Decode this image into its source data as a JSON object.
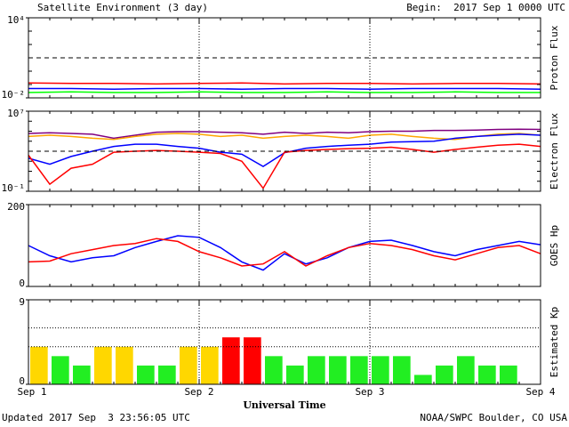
{
  "header": {
    "title": "Satellite Environment (3 day)",
    "begin": "Begin:  2017 Sep 1 0000 UTC"
  },
  "footer": {
    "updated": "Updated 2017 Sep  3 23:56:05 UTC",
    "credit": "NOAA/SWPC Boulder, CO USA"
  },
  "chart_data": [
    {
      "type": "line",
      "ylabel": "Proton Flux",
      "log_scale": true,
      "ylim": [
        0.01,
        10000
      ],
      "yticks": [
        {
          "value": 0.01,
          "label": "10⁻²"
        },
        {
          "value": 10000,
          "label": "10⁴"
        }
      ],
      "xlim": [
        0,
        72
      ],
      "xticks": [
        0,
        24,
        48,
        72
      ],
      "threshold": 10,
      "x": [
        0,
        6,
        12,
        18,
        24,
        30,
        36,
        42,
        48,
        54,
        60,
        66,
        72
      ],
      "series": [
        {
          "color": "#00ff00",
          "values": [
            0.025,
            0.028,
            0.025,
            0.025,
            0.028,
            0.025,
            0.025,
            0.028,
            0.025,
            0.025,
            0.028,
            0.025,
            0.025
          ]
        },
        {
          "color": "#0000ff",
          "values": [
            0.05,
            0.05,
            0.045,
            0.05,
            0.05,
            0.045,
            0.05,
            0.05,
            0.045,
            0.05,
            0.05,
            0.05,
            0.045
          ]
        },
        {
          "color": "#ff0000",
          "values": [
            0.13,
            0.12,
            0.12,
            0.11,
            0.12,
            0.13,
            0.11,
            0.12,
            0.12,
            0.11,
            0.12,
            0.12,
            0.11
          ]
        }
      ]
    },
    {
      "type": "line",
      "ylabel": "Electron Flux",
      "log_scale": true,
      "ylim": [
        0.1,
        10000000
      ],
      "yticks": [
        {
          "value": 0.1,
          "label": "10⁻¹"
        },
        {
          "value": 10000000,
          "label": "10⁷"
        }
      ],
      "xlim": [
        0,
        72
      ],
      "xticks": [
        0,
        24,
        48,
        72
      ],
      "threshold": 1000,
      "x": [
        0,
        3,
        6,
        9,
        12,
        15,
        18,
        21,
        24,
        27,
        30,
        33,
        36,
        39,
        42,
        45,
        48,
        51,
        54,
        57,
        60,
        63,
        66,
        69,
        72
      ],
      "series": [
        {
          "color": "#800080",
          "values": [
            60000,
            70000,
            60000,
            50000,
            20000,
            40000,
            80000,
            90000,
            90000,
            80000,
            70000,
            50000,
            80000,
            60000,
            80000,
            70000,
            90000,
            100000,
            100000,
            120000,
            120000,
            130000,
            150000,
            160000,
            150000
          ]
        },
        {
          "color": "#ffa500",
          "values": [
            30000,
            40000,
            30000,
            20000,
            15000,
            30000,
            50000,
            60000,
            50000,
            30000,
            40000,
            20000,
            30000,
            40000,
            30000,
            20000,
            40000,
            50000,
            30000,
            20000,
            15000,
            30000,
            50000,
            60000,
            40000
          ]
        },
        {
          "color": "#0000ff",
          "values": [
            200,
            50,
            300,
            1000,
            3000,
            5000,
            5000,
            3000,
            2000,
            800,
            500,
            30,
            700,
            2000,
            3000,
            4000,
            5000,
            8000,
            9000,
            10000,
            20000,
            30000,
            40000,
            50000,
            40000
          ]
        },
        {
          "color": "#ff0000",
          "values": [
            400,
            0.5,
            20,
            50,
            800,
            1000,
            1200,
            1000,
            800,
            600,
            100,
            0.2,
            800,
            1200,
            1500,
            1800,
            2000,
            2500,
            1500,
            800,
            1500,
            2500,
            4000,
            5000,
            3000
          ]
        }
      ]
    },
    {
      "type": "line",
      "ylabel": "GOES Hp",
      "log_scale": false,
      "ylim": [
        0,
        200
      ],
      "yticks": [
        0,
        200
      ],
      "xlim": [
        0,
        72
      ],
      "xticks": [
        0,
        24,
        48,
        72
      ],
      "x": [
        0,
        3,
        6,
        9,
        12,
        15,
        18,
        21,
        24,
        27,
        30,
        33,
        36,
        39,
        42,
        45,
        48,
        51,
        54,
        57,
        60,
        63,
        66,
        69,
        72
      ],
      "series": [
        {
          "color": "#0000ff",
          "values": [
            100,
            75,
            60,
            70,
            75,
            95,
            110,
            124,
            120,
            95,
            60,
            40,
            80,
            55,
            70,
            95,
            110,
            113,
            100,
            85,
            75,
            90,
            100,
            110,
            102
          ]
        },
        {
          "color": "#ff0000",
          "values": [
            60,
            62,
            80,
            90,
            100,
            105,
            117,
            110,
            85,
            70,
            50,
            55,
            85,
            50,
            75,
            95,
            105,
            100,
            90,
            75,
            65,
            80,
            95,
            100,
            80
          ]
        }
      ]
    },
    {
      "type": "bar",
      "ylabel": "Estimated Kp",
      "xlabel": "Universal Time",
      "log_scale": false,
      "ylim": [
        0,
        9
      ],
      "yticks": [
        0,
        9
      ],
      "grid_lines": [
        4,
        6
      ],
      "xlim": [
        0,
        72
      ],
      "xticks": [
        {
          "value": 0,
          "label": "Sep 1"
        },
        {
          "value": 24,
          "label": "Sep 2"
        },
        {
          "value": 48,
          "label": "Sep 3"
        },
        {
          "value": 72,
          "label": "Sep 4"
        }
      ],
      "x": [
        0,
        3,
        6,
        9,
        12,
        15,
        18,
        21,
        24,
        27,
        30,
        33,
        36,
        39,
        42,
        45,
        48,
        51,
        54,
        57,
        60,
        63,
        66
      ],
      "values": [
        4,
        3,
        2,
        4,
        4,
        2,
        2,
        4,
        4,
        5,
        5,
        3,
        2,
        3,
        3,
        3,
        3,
        3,
        1,
        2,
        3,
        2,
        2
      ],
      "colors": [
        "#ffd700",
        "#22ee22",
        "#22ee22",
        "#ffd700",
        "#ffd700",
        "#22ee22",
        "#22ee22",
        "#ffd700",
        "#ffd700",
        "#ff0000",
        "#ff0000",
        "#22ee22",
        "#22ee22",
        "#22ee22",
        "#22ee22",
        "#22ee22",
        "#22ee22",
        "#22ee22",
        "#22ee22",
        "#22ee22",
        "#22ee22",
        "#22ee22",
        "#22ee22"
      ]
    }
  ]
}
